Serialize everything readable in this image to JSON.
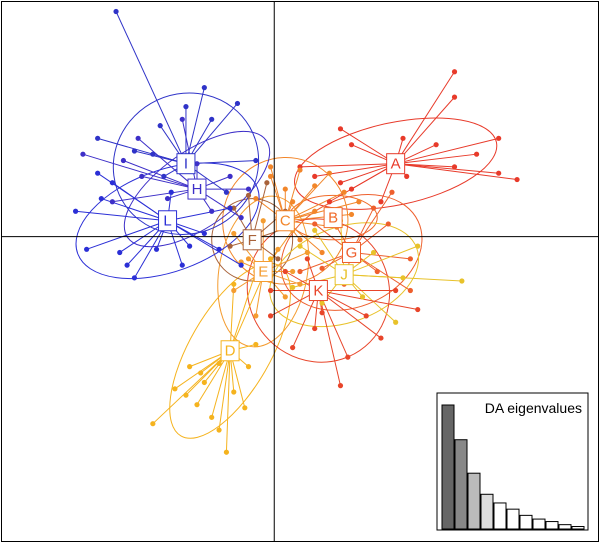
{
  "chart_data": {
    "type": "scatter",
    "description": "",
    "x_range": [
      -3.7,
      4.4
    ],
    "y_range": [
      -4.8,
      3.7
    ],
    "axes_origin": [
      0,
      0
    ],
    "groups": [
      {
        "name": "A",
        "color": "#E83A2A",
        "centroid": [
          1.65,
          1.15
        ],
        "ellipse": {
          "rx": 1.4,
          "ry": 0.65,
          "angle_deg": -12
        },
        "points": [
          [
            2.45,
            2.6
          ],
          [
            1.05,
            1.45
          ],
          [
            0.35,
            1.1
          ],
          [
            2.45,
            1.1
          ],
          [
            3.05,
            1.55
          ],
          [
            1.05,
            0.75
          ],
          [
            0.75,
            0.55
          ],
          [
            2.75,
            1.3
          ],
          [
            3.05,
            1.0
          ],
          [
            1.75,
            1.55
          ],
          [
            0.9,
            1.7
          ],
          [
            2.2,
            1.45
          ],
          [
            1.8,
            0.95
          ],
          [
            2.45,
            2.2
          ],
          [
            0.55,
            0.95
          ],
          [
            1.45,
            0.55
          ],
          [
            0.9,
            0.85
          ],
          [
            3.3,
            0.9
          ]
        ]
      },
      {
        "name": "B",
        "color": "#F06B2A",
        "centroid": [
          0.8,
          0.3
        ],
        "ellipse": {
          "rx": 0.6,
          "ry": 0.35,
          "angle_deg": 0
        },
        "points": []
      },
      {
        "name": "C",
        "color": "#F2862A",
        "centroid": [
          0.15,
          0.25
        ],
        "ellipse": {
          "rx": 0.85,
          "ry": 1.0,
          "angle_deg": 20
        },
        "points": [
          [
            0.35,
            1.05
          ],
          [
            0.55,
            0.8
          ],
          [
            0.75,
            1.0
          ],
          [
            0.95,
            0.7
          ],
          [
            0.55,
            0.4
          ],
          [
            0.15,
            0.75
          ],
          [
            -0.05,
            0.95
          ],
          [
            1.05,
            0.35
          ],
          [
            0.85,
            0.15
          ],
          [
            0.25,
            0.55
          ],
          [
            0.05,
            0.3
          ],
          [
            0.65,
            -0.25
          ],
          [
            0.35,
            -0.05
          ],
          [
            -0.25,
            0.6
          ],
          [
            -0.05,
            1.1
          ],
          [
            1.15,
            0.55
          ]
        ]
      },
      {
        "name": "D",
        "color": "#F5B31E",
        "centroid": [
          -0.6,
          -1.8
        ],
        "ellipse": {
          "rx": 0.55,
          "ry": 1.55,
          "angle_deg": 30
        },
        "points": [
          [
            -1.65,
            -2.95
          ],
          [
            -0.65,
            -3.4
          ],
          [
            -1.05,
            -2.65
          ],
          [
            -0.95,
            -2.3
          ],
          [
            -0.55,
            -2.45
          ],
          [
            -0.75,
            -2.0
          ],
          [
            -1.15,
            -2.05
          ],
          [
            -0.35,
            -2.05
          ],
          [
            -0.25,
            -1.7
          ],
          [
            -0.55,
            -0.75
          ],
          [
            -0.25,
            -0.55
          ],
          [
            -0.05,
            -0.35
          ],
          [
            -1.2,
            -2.5
          ],
          [
            -0.85,
            -2.85
          ],
          [
            -1.35,
            -2.4
          ],
          [
            -0.75,
            -3.05
          ],
          [
            -0.4,
            -2.7
          ],
          [
            -1.0,
            -2.15
          ]
        ]
      },
      {
        "name": "E",
        "color": "#F49C30",
        "centroid": [
          -0.15,
          -0.55
        ],
        "ellipse": {
          "rx": 0.6,
          "ry": 1.2,
          "angle_deg": 10
        },
        "points": [
          [
            -0.55,
            0.05
          ],
          [
            0.25,
            0.1
          ],
          [
            -0.35,
            -0.35
          ],
          [
            0.45,
            -0.25
          ],
          [
            -0.55,
            -0.85
          ],
          [
            0.15,
            -0.95
          ],
          [
            -0.25,
            -1.25
          ],
          [
            0.35,
            -0.75
          ],
          [
            -0.45,
            -0.4
          ],
          [
            0.05,
            -0.2
          ],
          [
            -0.15,
            0.25
          ],
          [
            0.25,
            -0.55
          ]
        ]
      },
      {
        "name": "F",
        "color": "#A8623A",
        "centroid": [
          -0.3,
          -0.05
        ],
        "ellipse": {
          "rx": 0.55,
          "ry": 0.65,
          "angle_deg": 0
        },
        "points": [
          [
            -0.55,
            0.45
          ],
          [
            0.15,
            0.4
          ],
          [
            -0.35,
            0.65
          ],
          [
            0.05,
            -0.35
          ],
          [
            -0.6,
            -0.15
          ],
          [
            -0.1,
            0.85
          ],
          [
            0.2,
            0.15
          ]
        ]
      },
      {
        "name": "G",
        "color": "#EE5F2D",
        "centroid": [
          1.05,
          -0.25
        ],
        "ellipse": {
          "rx": 1.0,
          "ry": 0.85,
          "angle_deg": -25
        },
        "points": [
          [
            1.6,
            0.7
          ],
          [
            1.35,
            0.45
          ],
          [
            0.55,
            0.2
          ],
          [
            1.85,
            -0.35
          ],
          [
            0.95,
            -0.75
          ],
          [
            0.65,
            -0.5
          ],
          [
            1.85,
            -0.85
          ],
          [
            0.35,
            -0.55
          ],
          [
            1.4,
            -0.55
          ],
          [
            0.75,
            0.35
          ],
          [
            1.55,
            0.2
          ]
        ]
      },
      {
        "name": "H",
        "color": "#3D2FC8",
        "centroid": [
          -1.05,
          0.75
        ],
        "ellipse": {
          "rx": 1.15,
          "ry": 0.6,
          "angle_deg": -35
        },
        "points": [
          [
            -2.6,
            1.3
          ],
          [
            -2.05,
            1.2
          ],
          [
            -1.85,
            1.55
          ],
          [
            -1.25,
            1.85
          ],
          [
            -1.45,
            0.6
          ],
          [
            -0.35,
            0.75
          ],
          [
            -0.85,
            0.4
          ],
          [
            -0.45,
            0.3
          ],
          [
            -1.8,
            0.95
          ],
          [
            -2.2,
            0.55
          ],
          [
            -1.05,
            1.15
          ],
          [
            -0.6,
            0.95
          ]
        ]
      },
      {
        "name": "I",
        "color": "#2F33C8",
        "centroid": [
          -1.2,
          1.15
        ],
        "ellipse": {
          "rx": 1.0,
          "ry": 1.1,
          "angle_deg": -30
        },
        "points": [
          [
            -2.15,
            3.55
          ],
          [
            -1.2,
            2.05
          ],
          [
            -1.65,
            1.3
          ],
          [
            -0.85,
            1.85
          ],
          [
            -0.5,
            2.1
          ],
          [
            -1.5,
            0.95
          ],
          [
            -0.65,
            0.7
          ],
          [
            -2.4,
            1.55
          ],
          [
            -1.55,
            1.75
          ],
          [
            -0.95,
            2.35
          ],
          [
            -1.9,
            1.35
          ],
          [
            -0.25,
            1.2
          ]
        ]
      },
      {
        "name": "J",
        "color": "#E8C22A",
        "centroid": [
          0.95,
          -0.6
        ],
        "ellipse": {
          "rx": 1.05,
          "ry": 0.75,
          "angle_deg": -20
        },
        "points": [
          [
            2.55,
            -0.7
          ],
          [
            1.65,
            -1.35
          ],
          [
            0.55,
            0.1
          ],
          [
            1.2,
            -0.95
          ],
          [
            0.9,
            0.25
          ],
          [
            1.95,
            -0.15
          ],
          [
            0.25,
            -0.8
          ],
          [
            1.35,
            -0.25
          ],
          [
            0.65,
            -1.05
          ],
          [
            1.75,
            -0.65
          ],
          [
            0.35,
            -0.15
          ]
        ]
      },
      {
        "name": "K",
        "color": "#E8452A",
        "centroid": [
          0.6,
          -0.85
        ],
        "ellipse": {
          "rx": 0.95,
          "ry": 1.15,
          "angle_deg": -40
        },
        "points": [
          [
            1.0,
            -1.9
          ],
          [
            0.55,
            -1.45
          ],
          [
            -0.05,
            -1.25
          ],
          [
            1.25,
            -1.25
          ],
          [
            0.25,
            -1.75
          ],
          [
            1.95,
            -1.15
          ],
          [
            0.65,
            -1.2
          ],
          [
            1.45,
            -1.6
          ],
          [
            0.9,
            -2.35
          ],
          [
            0.15,
            -0.55
          ],
          [
            0.45,
            -0.35
          ],
          [
            -0.05,
            -0.85
          ],
          [
            1.65,
            -0.85
          ]
        ]
      },
      {
        "name": "L",
        "color": "#2B2FD6",
        "centroid": [
          -1.45,
          0.25
        ],
        "ellipse": {
          "rx": 1.3,
          "ry": 0.8,
          "angle_deg": -20
        },
        "points": [
          [
            -2.7,
            0.4
          ],
          [
            -2.55,
            -0.2
          ],
          [
            -2.35,
            0.6
          ],
          [
            -2.2,
            0.85
          ],
          [
            -2.1,
            -0.25
          ],
          [
            -1.9,
            -0.65
          ],
          [
            -1.6,
            -0.2
          ],
          [
            -1.25,
            -0.45
          ],
          [
            -0.95,
            0.05
          ],
          [
            -0.6,
            0.45
          ],
          [
            -2.4,
            1.0
          ],
          [
            -1.4,
            0.7
          ],
          [
            -0.75,
            -0.2
          ],
          [
            -2.0,
            -0.45
          ],
          [
            -1.15,
            -0.15
          ],
          [
            -0.45,
            -0.45
          ]
        ]
      }
    ],
    "eigenvalues": {
      "title": "DA eigenvalues",
      "values": [
        10.0,
        7.2,
        4.5,
        2.8,
        2.1,
        1.6,
        1.1,
        0.8,
        0.6,
        0.35,
        0.2
      ],
      "retained": 4,
      "colors": {
        "retained": [
          "#666666",
          "#888888",
          "#bbbbbb",
          "#dddddd"
        ],
        "rest": "#ffffff"
      }
    }
  }
}
